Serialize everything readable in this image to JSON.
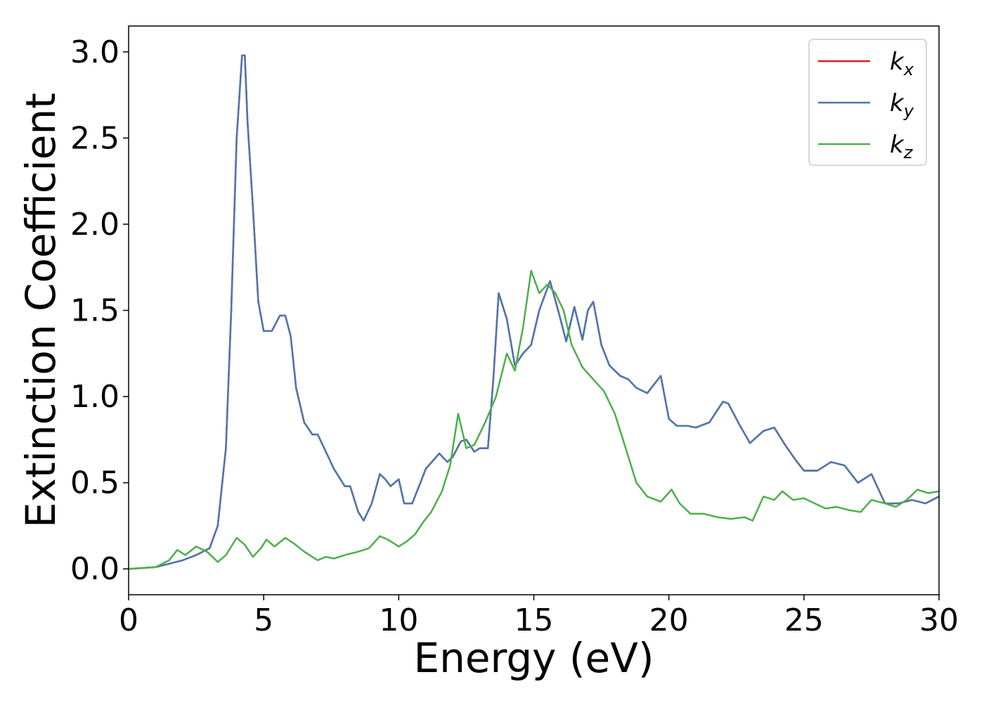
{
  "chart_data": {
    "type": "line",
    "xlabel": "Energy (eV)",
    "ylabel": "Extinction Coefficient",
    "xlim": [
      0,
      30
    ],
    "ylim": [
      -0.15,
      3.15
    ],
    "xticks": [
      0,
      5,
      10,
      15,
      20,
      25,
      30
    ],
    "xtick_labels": [
      "0",
      "5",
      "10",
      "15",
      "20",
      "25",
      "30"
    ],
    "yticks": [
      0.0,
      0.5,
      1.0,
      1.5,
      2.0,
      2.5,
      3.0
    ],
    "ytick_labels": [
      "0.0",
      "0.5",
      "1.0",
      "1.5",
      "2.0",
      "2.5",
      "3.0"
    ],
    "grid": false,
    "legend_position": "top-right",
    "series": [
      {
        "name": "k",
        "subscript": "x",
        "color": "#e31a1c",
        "x": [
          0,
          0.5,
          1,
          1.5,
          2,
          2.5,
          3,
          3.3,
          3.6,
          3.8,
          4.0,
          4.2,
          4.3,
          4.4,
          4.6,
          4.8,
          5.0,
          5.3,
          5.6,
          5.8,
          6.0,
          6.2,
          6.5,
          6.8,
          7.0,
          7.3,
          7.6,
          8.0,
          8.2,
          8.5,
          8.7,
          9.0,
          9.3,
          9.5,
          9.7,
          10.0,
          10.2,
          10.5,
          10.8,
          11.0,
          11.5,
          11.8,
          12.0,
          12.3,
          12.5,
          12.8,
          13.0,
          13.3,
          13.5,
          13.7,
          14.0,
          14.3,
          14.6,
          14.9,
          15.2,
          15.6,
          15.9,
          16.2,
          16.5,
          16.8,
          17.0,
          17.2,
          17.5,
          17.8,
          18.2,
          18.5,
          18.8,
          19.2,
          19.7,
          20.0,
          20.3,
          20.7,
          21.0,
          21.5,
          22.0,
          22.2,
          22.6,
          23.0,
          23.5,
          23.9,
          24.3,
          24.7,
          25.0,
          25.5,
          26.0,
          26.5,
          27.0,
          27.5,
          28.0,
          28.5,
          29.0,
          29.5,
          30.0
        ],
        "values": [
          0.0,
          0.005,
          0.01,
          0.03,
          0.05,
          0.08,
          0.12,
          0.25,
          0.7,
          1.5,
          2.5,
          2.98,
          2.98,
          2.6,
          2.1,
          1.55,
          1.38,
          1.38,
          1.47,
          1.47,
          1.35,
          1.05,
          0.85,
          0.78,
          0.78,
          0.68,
          0.58,
          0.48,
          0.48,
          0.33,
          0.28,
          0.38,
          0.55,
          0.52,
          0.48,
          0.52,
          0.38,
          0.38,
          0.5,
          0.58,
          0.67,
          0.62,
          0.65,
          0.74,
          0.75,
          0.68,
          0.7,
          0.7,
          1.1,
          1.6,
          1.45,
          1.18,
          1.25,
          1.3,
          1.5,
          1.67,
          1.5,
          1.32,
          1.52,
          1.33,
          1.5,
          1.55,
          1.3,
          1.18,
          1.12,
          1.1,
          1.05,
          1.02,
          1.12,
          0.87,
          0.83,
          0.83,
          0.82,
          0.85,
          0.97,
          0.96,
          0.84,
          0.73,
          0.8,
          0.82,
          0.72,
          0.63,
          0.57,
          0.57,
          0.62,
          0.6,
          0.5,
          0.55,
          0.38,
          0.38,
          0.4,
          0.38,
          0.42
        ]
      },
      {
        "name": "k",
        "subscript": "y",
        "color": "#4a78b0",
        "x": [
          0,
          0.5,
          1,
          1.5,
          2,
          2.5,
          3,
          3.3,
          3.6,
          3.8,
          4.0,
          4.2,
          4.3,
          4.4,
          4.6,
          4.8,
          5.0,
          5.3,
          5.6,
          5.8,
          6.0,
          6.2,
          6.5,
          6.8,
          7.0,
          7.3,
          7.6,
          8.0,
          8.2,
          8.5,
          8.7,
          9.0,
          9.3,
          9.5,
          9.7,
          10.0,
          10.2,
          10.5,
          10.8,
          11.0,
          11.5,
          11.8,
          12.0,
          12.3,
          12.5,
          12.8,
          13.0,
          13.3,
          13.5,
          13.7,
          14.0,
          14.3,
          14.6,
          14.9,
          15.2,
          15.6,
          15.9,
          16.2,
          16.5,
          16.8,
          17.0,
          17.2,
          17.5,
          17.8,
          18.2,
          18.5,
          18.8,
          19.2,
          19.7,
          20.0,
          20.3,
          20.7,
          21.0,
          21.5,
          22.0,
          22.2,
          22.6,
          23.0,
          23.5,
          23.9,
          24.3,
          24.7,
          25.0,
          25.5,
          26.0,
          26.5,
          27.0,
          27.5,
          28.0,
          28.5,
          29.0,
          29.5,
          30.0
        ],
        "values": [
          0.0,
          0.005,
          0.01,
          0.03,
          0.05,
          0.08,
          0.12,
          0.25,
          0.7,
          1.5,
          2.5,
          2.98,
          2.98,
          2.6,
          2.1,
          1.55,
          1.38,
          1.38,
          1.47,
          1.47,
          1.35,
          1.05,
          0.85,
          0.78,
          0.78,
          0.68,
          0.58,
          0.48,
          0.48,
          0.33,
          0.28,
          0.38,
          0.55,
          0.52,
          0.48,
          0.52,
          0.38,
          0.38,
          0.5,
          0.58,
          0.67,
          0.62,
          0.65,
          0.74,
          0.75,
          0.68,
          0.7,
          0.7,
          1.1,
          1.6,
          1.45,
          1.18,
          1.25,
          1.3,
          1.5,
          1.67,
          1.5,
          1.32,
          1.52,
          1.33,
          1.5,
          1.55,
          1.3,
          1.18,
          1.12,
          1.1,
          1.05,
          1.02,
          1.12,
          0.87,
          0.83,
          0.83,
          0.82,
          0.85,
          0.97,
          0.96,
          0.84,
          0.73,
          0.8,
          0.82,
          0.72,
          0.63,
          0.57,
          0.57,
          0.62,
          0.6,
          0.5,
          0.55,
          0.38,
          0.38,
          0.4,
          0.38,
          0.42
        ]
      },
      {
        "name": "k",
        "subscript": "z",
        "color": "#4daf4a",
        "x": [
          0,
          0.5,
          1,
          1.5,
          1.8,
          2.1,
          2.5,
          2.9,
          3.3,
          3.6,
          4.0,
          4.3,
          4.6,
          4.9,
          5.1,
          5.4,
          5.8,
          6.1,
          6.5,
          7.0,
          7.3,
          7.6,
          8.0,
          8.5,
          8.9,
          9.3,
          9.6,
          10.0,
          10.3,
          10.6,
          10.9,
          11.2,
          11.6,
          11.9,
          12.2,
          12.5,
          12.8,
          13.2,
          13.6,
          14.0,
          14.3,
          14.6,
          14.9,
          15.2,
          15.5,
          15.8,
          16.1,
          16.4,
          16.8,
          17.2,
          17.6,
          18.0,
          18.4,
          18.8,
          19.2,
          19.7,
          20.1,
          20.4,
          20.8,
          21.3,
          21.8,
          22.3,
          22.8,
          23.1,
          23.5,
          23.9,
          24.2,
          24.6,
          25.0,
          25.4,
          25.8,
          26.2,
          26.7,
          27.1,
          27.5,
          28.0,
          28.4,
          28.8,
          29.2,
          29.6,
          30.0
        ],
        "values": [
          0.0,
          0.005,
          0.01,
          0.05,
          0.11,
          0.08,
          0.13,
          0.1,
          0.04,
          0.08,
          0.18,
          0.14,
          0.07,
          0.12,
          0.17,
          0.13,
          0.18,
          0.15,
          0.1,
          0.05,
          0.07,
          0.06,
          0.08,
          0.1,
          0.12,
          0.19,
          0.17,
          0.13,
          0.16,
          0.2,
          0.27,
          0.33,
          0.45,
          0.6,
          0.9,
          0.7,
          0.72,
          0.85,
          1.0,
          1.25,
          1.15,
          1.4,
          1.73,
          1.6,
          1.65,
          1.6,
          1.5,
          1.3,
          1.17,
          1.1,
          1.03,
          0.9,
          0.7,
          0.5,
          0.42,
          0.39,
          0.46,
          0.38,
          0.32,
          0.32,
          0.3,
          0.29,
          0.3,
          0.28,
          0.42,
          0.4,
          0.45,
          0.4,
          0.41,
          0.38,
          0.35,
          0.36,
          0.34,
          0.33,
          0.4,
          0.38,
          0.36,
          0.4,
          0.46,
          0.44,
          0.45
        ]
      }
    ]
  }
}
